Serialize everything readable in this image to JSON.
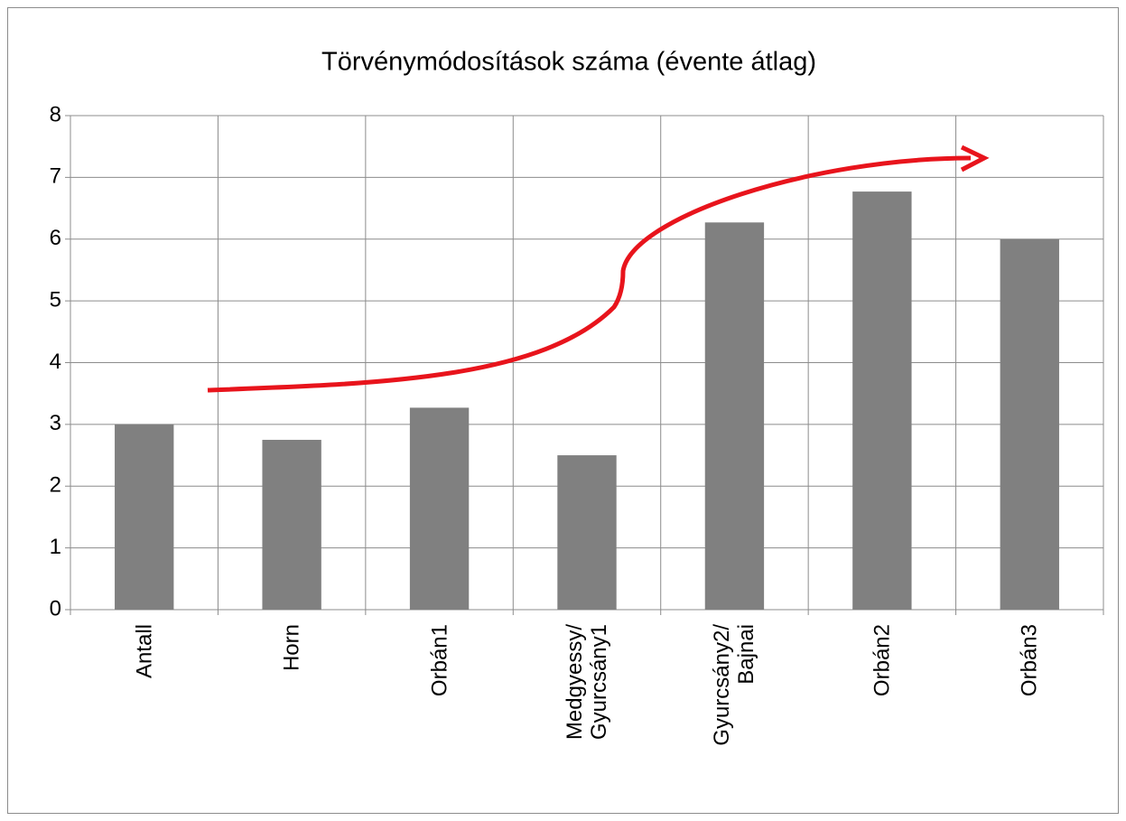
{
  "chart_data": {
    "type": "bar",
    "title": "Törvénymódosítások száma (évente átlag)",
    "categories": [
      "Antall",
      "Horn",
      "Orbán1",
      "Medgyessy/\nGyurcsány1",
      "Gyurcsány2/\nBajnai",
      "Orbán2",
      "Orbán3"
    ],
    "values": [
      3.0,
      2.75,
      3.27,
      2.5,
      6.27,
      6.77,
      6.0
    ],
    "color": "#808080",
    "ylim": [
      0,
      8
    ],
    "yticks": [
      0,
      1,
      2,
      3,
      4,
      5,
      6,
      7,
      8
    ],
    "grid": true
  }
}
